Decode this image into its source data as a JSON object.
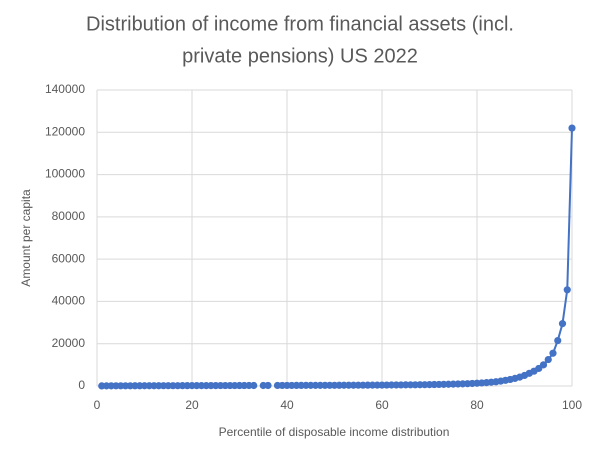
{
  "chart_data": {
    "type": "line",
    "title": [
      "Distribution of income from financial assets (incl.",
      "private pensions) US 2022"
    ],
    "x_label": "Percentile of disposable income distribution",
    "y_label": "Amount per capita",
    "x": [
      1,
      2,
      3,
      4,
      5,
      6,
      7,
      8,
      9,
      10,
      11,
      12,
      13,
      14,
      15,
      16,
      17,
      18,
      19,
      20,
      21,
      22,
      23,
      24,
      25,
      26,
      27,
      28,
      29,
      30,
      31,
      32,
      33,
      34,
      35,
      36,
      37,
      38,
      39,
      40,
      41,
      42,
      43,
      44,
      45,
      46,
      47,
      48,
      49,
      50,
      51,
      52,
      53,
      54,
      55,
      56,
      57,
      58,
      59,
      60,
      61,
      62,
      63,
      64,
      65,
      66,
      67,
      68,
      69,
      70,
      71,
      72,
      73,
      74,
      75,
      76,
      77,
      78,
      79,
      80,
      81,
      82,
      83,
      84,
      85,
      86,
      87,
      88,
      89,
      90,
      91,
      92,
      93,
      94,
      95,
      96,
      97,
      98,
      99,
      100
    ],
    "series": [
      {
        "name": "Amount per capita",
        "color": "#4472c4",
        "values": [
          50,
          60,
          70,
          80,
          90,
          100,
          100,
          110,
          110,
          120,
          120,
          130,
          130,
          140,
          140,
          150,
          150,
          160,
          160,
          170,
          170,
          180,
          180,
          190,
          190,
          200,
          200,
          210,
          210,
          220,
          220,
          230,
          230,
          null,
          240,
          250,
          null,
          260,
          260,
          270,
          270,
          280,
          280,
          290,
          290,
          300,
          300,
          310,
          320,
          330,
          340,
          350,
          360,
          370,
          380,
          390,
          400,
          410,
          420,
          430,
          450,
          470,
          490,
          510,
          530,
          550,
          570,
          600,
          630,
          660,
          700,
          740,
          780,
          830,
          880,
          940,
          1000,
          1100,
          1200,
          1300,
          1450,
          1600,
          1800,
          2000,
          2300,
          2700,
          3100,
          3600,
          4200,
          5000,
          6000,
          7000,
          8300,
          10000,
          12500,
          15500,
          21500,
          29500,
          45500,
          122000
        ]
      }
    ],
    "xlim": [
      0,
      100
    ],
    "xticks": [
      0,
      20,
      40,
      60,
      80,
      100
    ],
    "ylim": [
      0,
      140000
    ],
    "yticks": [
      0,
      20000,
      40000,
      60000,
      80000,
      100000,
      120000,
      140000
    ],
    "grid": true
  }
}
